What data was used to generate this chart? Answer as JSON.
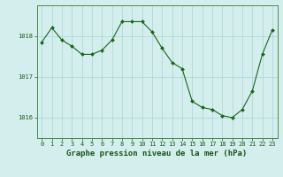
{
  "x": [
    0,
    1,
    2,
    3,
    4,
    5,
    6,
    7,
    8,
    9,
    10,
    11,
    12,
    13,
    14,
    15,
    16,
    17,
    18,
    19,
    20,
    21,
    22,
    23
  ],
  "y": [
    1017.85,
    1018.2,
    1017.9,
    1017.75,
    1017.55,
    1017.55,
    1017.65,
    1017.9,
    1018.35,
    1018.35,
    1018.35,
    1018.1,
    1017.7,
    1017.35,
    1017.2,
    1016.4,
    1016.25,
    1016.2,
    1016.05,
    1016.0,
    1016.2,
    1016.65,
    1017.55,
    1018.15
  ],
  "line_color": "#1a6618",
  "marker": "D",
  "marker_size": 2.0,
  "bg_color": "#d4eeee",
  "grid_color": "#aad4d4",
  "title": "Graphe pression niveau de la mer (hPa)",
  "xlim": [
    -0.5,
    23.5
  ],
  "ylim": [
    1015.5,
    1018.75
  ],
  "yticks": [
    1016,
    1017,
    1018
  ],
  "xtick_labels": [
    "0",
    "1",
    "2",
    "3",
    "4",
    "5",
    "6",
    "7",
    "8",
    "9",
    "10",
    "11",
    "12",
    "13",
    "14",
    "15",
    "16",
    "17",
    "18",
    "19",
    "20",
    "21",
    "22",
    "23"
  ],
  "title_fontsize": 6.5,
  "tick_fontsize": 5.0,
  "title_color": "#1a5518",
  "border_color": "#4a8a4a",
  "linewidth": 0.8
}
